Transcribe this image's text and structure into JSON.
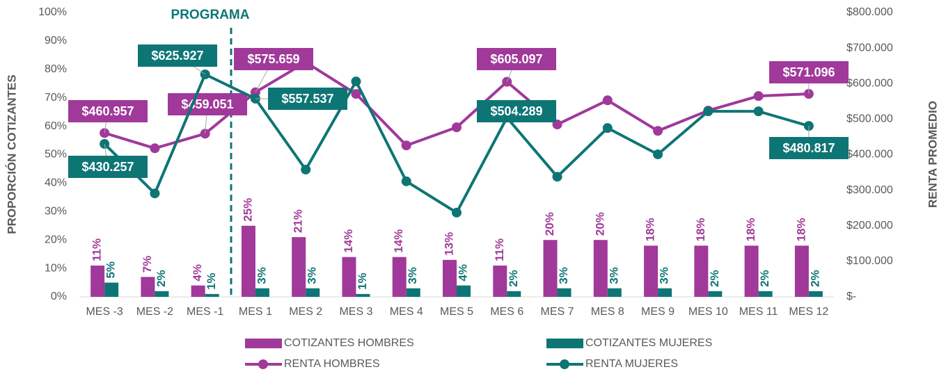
{
  "chart_data": {
    "type": "bar",
    "annotation": "PROGRAMA",
    "y_label": "PROPORCIÓN COTIZANTES",
    "y2_label": "RENTA PROMEDIO",
    "categories": [
      "MES -3",
      "MES -2",
      "MES -1",
      "MES 1",
      "MES 2",
      "MES 3",
      "MES 4",
      "MES 5",
      "MES 6",
      "MES 7",
      "MES 8",
      "MES 9",
      "MES 10",
      "MES 11",
      "MES 12"
    ],
    "series": [
      {
        "name": "COTIZANTES HOMBRES",
        "type": "bar",
        "color": "#a0399a",
        "values": [
          11,
          7,
          4,
          25,
          21,
          14,
          14,
          13,
          11,
          20,
          20,
          18,
          18,
          18,
          18
        ],
        "value_labels": [
          "11%",
          "7%",
          "4%",
          "25%",
          "21%",
          "14%",
          "14%",
          "13%",
          "11%",
          "20%",
          "20%",
          "18%",
          "18%",
          "18%",
          "18%"
        ]
      },
      {
        "name": "COTIZANTES MUJERES",
        "type": "bar",
        "color": "#0e7575",
        "values": [
          5,
          2,
          1,
          3,
          3,
          1,
          3,
          4,
          2,
          3,
          3,
          3,
          2,
          2,
          2
        ],
        "value_labels": [
          "5%",
          "2%",
          "1%",
          "3%",
          "3%",
          "1%",
          "3%",
          "4%",
          "2%",
          "3%",
          "3%",
          "3%",
          "2%",
          "2%",
          "2%"
        ]
      },
      {
        "name": "RENTA HOMBRES",
        "type": "line",
        "axis": "y2",
        "color": "#a0399a",
        "values": [
          460957,
          418000,
          459051,
          575659,
          660000,
          571000,
          426000,
          477000,
          605097,
          485000,
          553000,
          467000,
          524000,
          565000,
          571096
        ],
        "value_labels": [
          "$460.957",
          null,
          "$459.051",
          "$575.659",
          null,
          null,
          null,
          null,
          "$605.097",
          null,
          null,
          null,
          null,
          null,
          "$571.096"
        ]
      },
      {
        "name": "RENTA MUJERES",
        "type": "line",
        "axis": "y2",
        "color": "#0e7575",
        "values": [
          430257,
          291000,
          625927,
          557537,
          358000,
          606000,
          325000,
          237000,
          504289,
          338000,
          475000,
          401000,
          522000,
          522000,
          480817
        ],
        "value_labels": [
          "$430.257",
          null,
          "$625.927",
          "$557.537",
          null,
          null,
          null,
          null,
          "$504.289",
          null,
          null,
          null,
          null,
          null,
          "$480.817"
        ]
      }
    ],
    "ylim": [
      0,
      100
    ],
    "yticks": [
      {
        "value": 0,
        "label": "0%"
      },
      {
        "value": 10,
        "label": "10%"
      },
      {
        "value": 20,
        "label": "20%"
      },
      {
        "value": 30,
        "label": "30%"
      },
      {
        "value": 40,
        "label": "40%"
      },
      {
        "value": 50,
        "label": "50%"
      },
      {
        "value": 60,
        "label": "60%"
      },
      {
        "value": 70,
        "label": "70%"
      },
      {
        "value": 80,
        "label": "80%"
      },
      {
        "value": 90,
        "label": "90%"
      },
      {
        "value": 100,
        "label": "100%"
      }
    ],
    "y2lim": [
      0,
      800000
    ],
    "y2ticks": [
      {
        "value": 0,
        "label": "$-"
      },
      {
        "value": 100000,
        "label": "$100.000"
      },
      {
        "value": 200000,
        "label": "$200.000"
      },
      {
        "value": 300000,
        "label": "$300.000"
      },
      {
        "value": 400000,
        "label": "$400.000"
      },
      {
        "value": 500000,
        "label": "$500.000"
      },
      {
        "value": 600000,
        "label": "$600.000"
      },
      {
        "value": 700000,
        "label": "$700.000"
      },
      {
        "value": 800000,
        "label": "$800.000"
      }
    ],
    "legend": "bottom"
  }
}
